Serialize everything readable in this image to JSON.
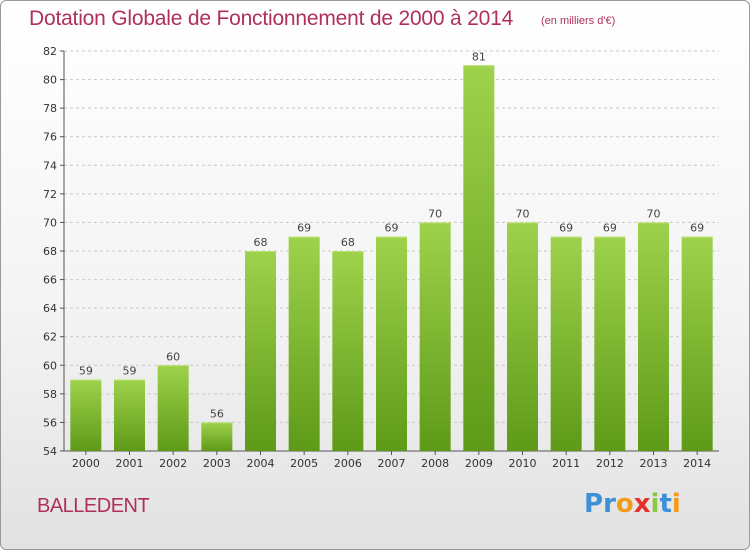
{
  "chart_data": {
    "type": "bar",
    "title": "Dotation Globale de Fonctionnement de 2000 à 2014",
    "subtitle": "(en milliers d'€)",
    "categories": [
      "2000",
      "2001",
      "2002",
      "2003",
      "2004",
      "2005",
      "2006",
      "2007",
      "2008",
      "2009",
      "2010",
      "2011",
      "2012",
      "2013",
      "2014"
    ],
    "values": [
      59,
      59,
      60,
      56,
      68,
      69,
      68,
      69,
      70,
      81,
      70,
      69,
      69,
      70,
      69
    ],
    "ylim": [
      54,
      82
    ],
    "yticks": [
      54,
      56,
      58,
      60,
      62,
      64,
      66,
      68,
      70,
      72,
      74,
      76,
      78,
      80,
      82
    ],
    "grid": "horizontal dashed",
    "bar_color": "#7dbd2c",
    "bar_color_light": "#9ed24c",
    "bar_color_dark": "#5e9a18",
    "xlabel": "",
    "ylabel": ""
  },
  "commune": "BALLEDENT",
  "logo": {
    "letters": [
      "P",
      "r",
      "o",
      "x",
      "i",
      "t",
      "i"
    ],
    "colors": [
      "#3d8fd8",
      "#3d8fd8",
      "#f29a1a",
      "#e8302a",
      "#8fc641",
      "#3d8fd8",
      "#f29a1a"
    ]
  },
  "colors": {
    "title": "#b0305a",
    "grid": "#c8c8c8",
    "axis": "#555555"
  }
}
